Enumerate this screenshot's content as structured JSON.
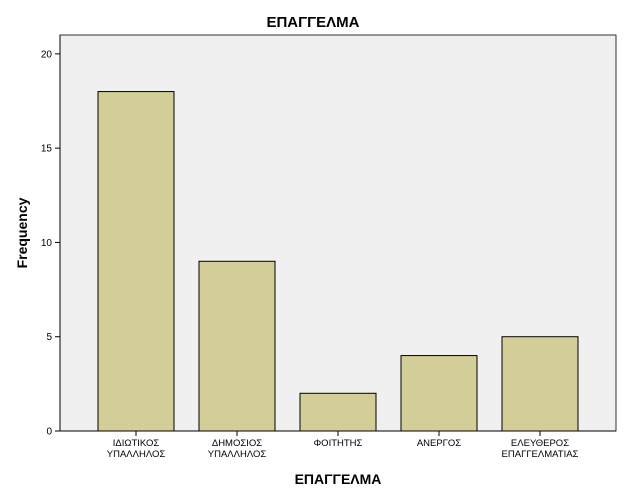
{
  "chart_data": {
    "type": "bar",
    "title": "ΕΠΑΓΓΕΛΜΑ",
    "xlabel": "ΕΠΑΓΓΕΛΜΑ",
    "ylabel": "Frequency",
    "categories": [
      [
        "ΙΔΙΩΤΙΚΟΣ",
        "ΥΠΑΛΛΗΛΟΣ"
      ],
      [
        "ΔΗΜΟΣΙΟΣ",
        "ΥΠΑΛΛΗΛΟΣ"
      ],
      [
        "ΦΟΙΤΗΤΗΣ"
      ],
      [
        "ΑΝΕΡΓΟΣ"
      ],
      [
        "ΕΛΕΥΘΕΡΟΣ",
        "ΕΠΑΓΓΕΛΜΑΤΙΑΣ"
      ]
    ],
    "values": [
      18,
      9,
      2,
      4,
      5
    ],
    "ylim": [
      0,
      21
    ],
    "yticks": [
      0,
      5,
      10,
      15,
      20
    ],
    "grid": false,
    "colors": {
      "plot_background": "#f0f0f0",
      "bar_fill": "#d3ce97",
      "bar_stroke": "#000000"
    }
  }
}
